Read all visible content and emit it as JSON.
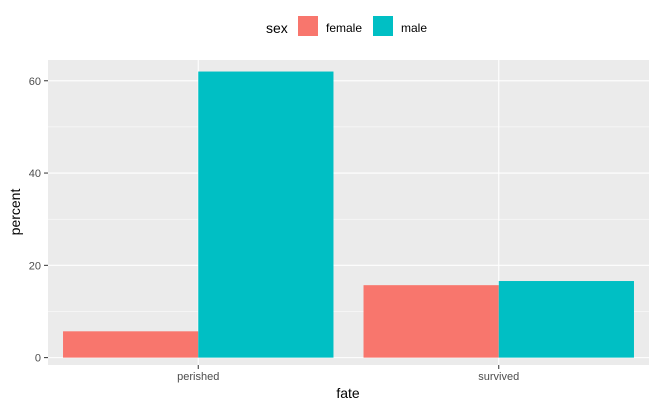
{
  "chart_data": {
    "type": "bar",
    "title": "",
    "xlabel": "fate",
    "ylabel": "percent",
    "categories": [
      "perished",
      "survived"
    ],
    "series": [
      {
        "name": "female",
        "values": [
          5.7,
          15.7
        ],
        "color": "#F8766D"
      },
      {
        "name": "male",
        "values": [
          62.0,
          16.6
        ],
        "color": "#00BFC4"
      }
    ],
    "ylim": [
      -1.6,
      64.5
    ],
    "yticks": [
      0,
      20,
      40,
      60
    ],
    "grid": true,
    "panel_background": "#EBEBEB",
    "grid_color": "#FFFFFF",
    "legend": {
      "title": "sex",
      "position": "top"
    }
  }
}
